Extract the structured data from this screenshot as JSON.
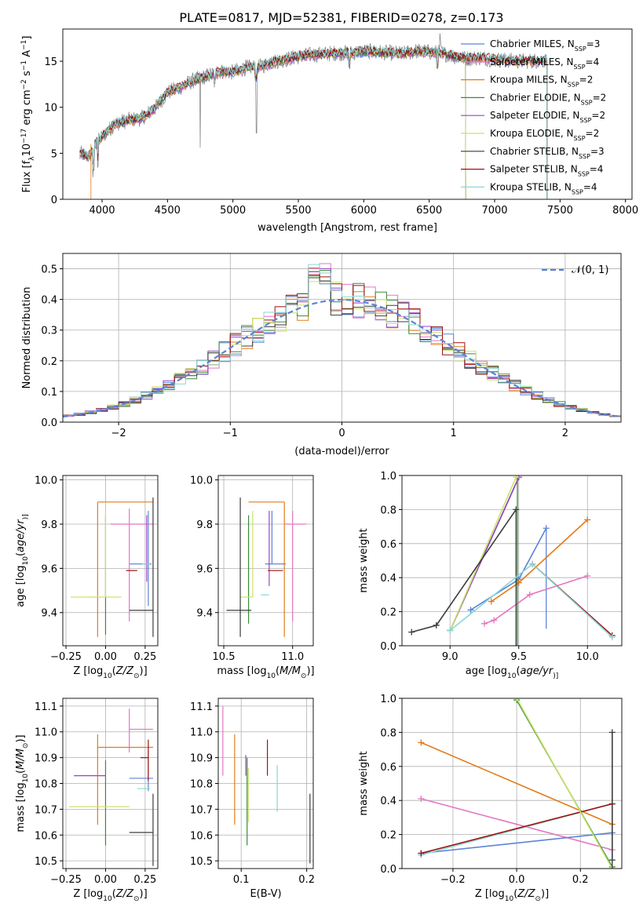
{
  "figure": {
    "title": "PLATE=0817, MJD=52381, FIBERID=0278, z=0.173"
  },
  "colors": {
    "Chabrier MILES": "#5b84d6",
    "Salpeter MILES": "#e377c2",
    "Kroupa MILES": "#e37b1a",
    "Chabrier ELODIE": "#3a8a3a",
    "Salpeter ELODIE": "#9b42c8",
    "Kroupa ELODIE": "#c8e36b",
    "Chabrier STELIB": "#3c3c3c",
    "Salpeter STELIB": "#a01010",
    "Kroupa STELIB": "#8ad6d6",
    "gauss": "#5b84d6",
    "spectrum": "#7f7f7f"
  },
  "chart_data": [
    {
      "id": "spectrum",
      "type": "line",
      "xlabel": "wavelength [Angstrom, rest frame]",
      "ylabel_html": [
        "Flux [f",
        "λ",
        "10",
        "−17",
        " erg cm",
        "−2",
        " s",
        "−1",
        " A",
        "−1",
        "]"
      ],
      "xlim": [
        3700,
        8050
      ],
      "ylim": [
        0,
        18.5
      ],
      "xticks": [
        4000,
        4500,
        5000,
        5500,
        6000,
        6500,
        7000,
        7500,
        8000
      ],
      "yticks": [
        0,
        5,
        10,
        15
      ],
      "continuum": [
        [
          3830,
          5.0
        ],
        [
          3900,
          4.6
        ],
        [
          3950,
          6.0
        ],
        [
          4000,
          6.8
        ],
        [
          4100,
          8.2
        ],
        [
          4200,
          8.6
        ],
        [
          4300,
          8.8
        ],
        [
          4400,
          9.8
        ],
        [
          4500,
          11.6
        ],
        [
          4600,
          12.2
        ],
        [
          4700,
          12.9
        ],
        [
          4800,
          13.4
        ],
        [
          4900,
          13.9
        ],
        [
          5000,
          13.8
        ],
        [
          5100,
          14.3
        ],
        [
          5200,
          14.4
        ],
        [
          5300,
          14.9
        ],
        [
          5400,
          15.2
        ],
        [
          5500,
          15.5
        ],
        [
          5600,
          15.7
        ],
        [
          5700,
          15.8
        ],
        [
          5800,
          15.9
        ],
        [
          5900,
          15.9
        ],
        [
          6000,
          16.1
        ],
        [
          6100,
          16.0
        ],
        [
          6200,
          15.9
        ],
        [
          6300,
          15.8
        ],
        [
          6400,
          16.1
        ],
        [
          6500,
          16.0
        ],
        [
          6600,
          15.9
        ],
        [
          6700,
          15.5
        ],
        [
          6780,
          15.3
        ],
        [
          6900,
          15.4
        ],
        [
          7000,
          15.2
        ],
        [
          7200,
          15.0
        ],
        [
          7400,
          15.1
        ]
      ],
      "absorption": [
        [
          3934,
          2.8
        ],
        [
          3968,
          2.6
        ],
        [
          4861,
          1.0
        ],
        [
          5175,
          1.6
        ],
        [
          5890,
          1.4
        ],
        [
          6563,
          1.8
        ]
      ],
      "emission": [
        [
          6563,
          2.4
        ],
        [
          6583,
          1.6
        ],
        [
          5007,
          0.8
        ]
      ],
      "series": [
        {
          "name": "Chabrier MILES",
          "nssp": "3",
          "xmax": 7400
        },
        {
          "name": "Salpeter MILES",
          "nssp": "4",
          "xmax": 7400
        },
        {
          "name": "Kroupa MILES",
          "nssp": "2",
          "xmax": 7400
        },
        {
          "name": "Chabrier ELODIE",
          "nssp": "2",
          "xmax": 6780
        },
        {
          "name": "Salpeter ELODIE",
          "nssp": "2",
          "xmax": 6780
        },
        {
          "name": "Kroupa ELODIE",
          "nssp": "2",
          "xmax": 6780
        },
        {
          "name": "Chabrier STELIB",
          "nssp": "3",
          "xmax": 7400
        },
        {
          "name": "Salpeter STELIB",
          "nssp": "4",
          "xmax": 7400
        },
        {
          "name": "Kroupa STELIB",
          "nssp": "4",
          "xmax": 7400
        }
      ],
      "legend": "top-right"
    },
    {
      "id": "residuals",
      "type": "step",
      "xlabel": "(data-model)/error",
      "ylabel": "Normed distribution",
      "xlim": [
        -2.5,
        2.5
      ],
      "ylim": [
        0,
        0.55
      ],
      "xticks": [
        -2,
        -1,
        0,
        1,
        2
      ],
      "yticks": [
        0.0,
        0.1,
        0.2,
        0.3,
        0.4,
        0.5
      ],
      "bin_width": 0.1,
      "gaussian_label": "𝒩(0, 1)",
      "legend": "top-right"
    },
    {
      "id": "age_vs_Z",
      "type": "errorbar",
      "xlabel_html": [
        "Z [log",
        "10",
        "(",
        "Z/Z",
        "⊙",
        ")]"
      ],
      "ylabel_html": [
        "age  [log",
        "10",
        "(",
        "age/yr",
        ")]"
      ],
      "xlim": [
        -0.27,
        0.33
      ],
      "ylim": [
        9.25,
        10.02
      ],
      "xticks": [
        -0.25,
        0.0,
        0.25
      ],
      "yticks": [
        9.4,
        9.6,
        9.8,
        10.0
      ],
      "points": [
        {
          "series": "Chabrier MILES",
          "x": 0.27,
          "xerr": [
            0.12,
            0.02
          ],
          "y": 9.62,
          "yerr": [
            0.19,
            0.24
          ]
        },
        {
          "series": "Salpeter MILES",
          "x": 0.15,
          "xerr": [
            0.12,
            0.15
          ],
          "y": 9.8,
          "yerr": [
            0.44,
            0.07
          ]
        },
        {
          "series": "Kroupa MILES",
          "x": -0.05,
          "xerr": [
            0.0,
            0.35
          ],
          "y": 9.9,
          "yerr": [
            0.61,
            0.0
          ]
        },
        {
          "series": "Chabrier ELODIE",
          "x": 0.0,
          "xerr": [
            0.0,
            0.0
          ],
          "y": 9.47,
          "yerr": [
            0.17,
            0.37
          ]
        },
        {
          "series": "Salpeter ELODIE",
          "x": 0.26,
          "xerr": [
            0.0,
            0.0
          ],
          "y": 9.8,
          "yerr": [
            0.26,
            0.04
          ]
        },
        {
          "series": "Kroupa ELODIE",
          "x": 0.0,
          "xerr": [
            0.22,
            0.1
          ],
          "y": 9.47,
          "yerr": [
            0.0,
            0.38
          ]
        },
        {
          "series": "Chabrier STELIB",
          "x": 0.3,
          "xerr": [
            0.15,
            0.0
          ],
          "y": 9.41,
          "yerr": [
            0.12,
            0.51
          ]
        },
        {
          "series": "Salpeter STELIB",
          "x": 0.2,
          "xerr": [
            0.07,
            0.0
          ],
          "y": 9.59,
          "yerr": [
            0.0,
            0.0
          ]
        },
        {
          "series": "Kroupa STELIB",
          "x": 0.28,
          "xerr": [
            0.05,
            0.0
          ],
          "y": 9.62,
          "yerr": [
            0.0,
            0.0
          ]
        }
      ]
    },
    {
      "id": "age_vs_mass",
      "type": "errorbar",
      "xlabel_html": [
        "mass [log",
        "10",
        "(",
        "M/M",
        "⊙",
        ")]"
      ],
      "xlim": [
        10.46,
        11.15
      ],
      "ylim": [
        9.25,
        10.02
      ],
      "xticks": [
        10.5,
        11.0
      ],
      "yticks": [
        9.4,
        9.6,
        9.8,
        10.0
      ],
      "points": [
        {
          "series": "Chabrier MILES",
          "x": 10.85,
          "xerr": [
            0.05,
            0.1
          ],
          "y": 9.62,
          "yerr": [
            0.0,
            0.24
          ]
        },
        {
          "series": "Salpeter MILES",
          "x": 11.0,
          "xerr": [
            0.06,
            0.1
          ],
          "y": 9.8,
          "yerr": [
            0.44,
            0.06
          ]
        },
        {
          "series": "Kroupa MILES",
          "x": 10.94,
          "xerr": [
            0.26,
            0.0
          ],
          "y": 9.9,
          "yerr": [
            0.61,
            0.0
          ]
        },
        {
          "series": "Chabrier ELODIE",
          "x": 10.68,
          "xerr": [
            0.0,
            0.0
          ],
          "y": 9.47,
          "yerr": [
            0.12,
            0.37
          ]
        },
        {
          "series": "Salpeter ELODIE",
          "x": 10.83,
          "xerr": [
            0.0,
            0.0
          ],
          "y": 9.78,
          "yerr": [
            0.26,
            0.08
          ]
        },
        {
          "series": "Kroupa ELODIE",
          "x": 10.71,
          "xerr": [
            0.09,
            0.0
          ],
          "y": 9.47,
          "yerr": [
            0.0,
            0.39
          ]
        },
        {
          "series": "Chabrier STELIB",
          "x": 10.62,
          "xerr": [
            0.1,
            0.08
          ],
          "y": 9.41,
          "yerr": [
            0.12,
            0.51
          ]
        },
        {
          "series": "Salpeter STELIB",
          "x": 10.87,
          "xerr": [
            0.05,
            0.06
          ],
          "y": 9.59,
          "yerr": [
            0.0,
            0.0
          ]
        },
        {
          "series": "Kroupa STELIB",
          "x": 10.77,
          "xerr": [
            0.0,
            0.06
          ],
          "y": 9.48,
          "yerr": [
            0.0,
            0.0
          ]
        }
      ]
    },
    {
      "id": "massweight_vs_age",
      "type": "line",
      "xlabel_html": [
        "age  [log",
        "10",
        "(",
        "age/yr",
        ")]"
      ],
      "ylabel": "mass weight",
      "xlim": [
        8.65,
        10.25
      ],
      "ylim": [
        0,
        1.0
      ],
      "xticks": [
        9.0,
        9.5,
        10.0
      ],
      "yticks": [
        0.0,
        0.2,
        0.4,
        0.6,
        0.8,
        1.0
      ],
      "series": [
        {
          "name": "Chabrier MILES",
          "x": [
            9.15,
            9.5,
            9.7
          ],
          "y": [
            0.21,
            0.39,
            0.69
          ],
          "vlines": [
            [
              9.7,
              0.1,
              0.69
            ]
          ]
        },
        {
          "name": "Salpeter MILES",
          "x": [
            9.25,
            9.32,
            9.58,
            10.0
          ],
          "y": [
            0.13,
            0.15,
            0.3,
            0.41
          ]
        },
        {
          "name": "Kroupa MILES",
          "x": [
            9.3,
            9.5,
            10.0
          ],
          "y": [
            0.26,
            0.37,
            0.74
          ]
        },
        {
          "name": "Chabrier ELODIE",
          "x": [
            9.0,
            9.5
          ],
          "y": [
            0.09,
            0.99
          ],
          "vlines": [
            [
              9.49,
              0.0,
              0.99
            ]
          ]
        },
        {
          "name": "Salpeter ELODIE",
          "x": [
            9.0,
            9.5
          ],
          "y": [
            0.09,
            0.99
          ]
        },
        {
          "name": "Kroupa ELODIE",
          "x": [
            9.0,
            9.48
          ],
          "y": [
            0.09,
            0.99
          ]
        },
        {
          "name": "Chabrier STELIB",
          "x": [
            8.72,
            8.9,
            9.48
          ],
          "y": [
            0.08,
            0.12,
            0.8
          ],
          "vlines": [
            [
              9.48,
              0.0,
              0.8
            ]
          ]
        },
        {
          "name": "Salpeter STELIB",
          "x": [
            9.6,
            10.18
          ],
          "y": [
            0.48,
            0.06
          ]
        },
        {
          "name": "Kroupa STELIB",
          "x": [
            9.0,
            9.6,
            10.18
          ],
          "y": [
            0.09,
            0.48,
            0.05
          ]
        }
      ]
    },
    {
      "id": "mass_vs_Z",
      "type": "errorbar",
      "xlabel_html": [
        "Z [log",
        "10",
        "(",
        "Z/Z",
        "⊙",
        ")]"
      ],
      "ylabel_html": [
        "mass [log",
        "10",
        "(",
        "M/M",
        "⊙",
        ")]"
      ],
      "xlim": [
        -0.27,
        0.33
      ],
      "ylim": [
        10.47,
        11.13
      ],
      "xticks": [
        -0.25,
        0.0,
        0.25
      ],
      "yticks": [
        10.5,
        10.6,
        10.7,
        10.8,
        10.9,
        11.0,
        11.1
      ],
      "points": [
        {
          "series": "Chabrier MILES",
          "x": 0.27,
          "xerr": [
            0.12,
            0.03
          ],
          "y": 10.82,
          "yerr": [
            0.05,
            0.11
          ]
        },
        {
          "series": "Salpeter MILES",
          "x": 0.15,
          "xerr": [
            0.0,
            0.15
          ],
          "y": 11.01,
          "yerr": [
            0.09,
            0.08
          ]
        },
        {
          "series": "Kroupa MILES",
          "x": -0.05,
          "xerr": [
            0.0,
            0.35
          ],
          "y": 10.94,
          "yerr": [
            0.3,
            0.05
          ]
        },
        {
          "series": "Chabrier ELODIE",
          "x": 0.0,
          "xerr": [
            0.0,
            0.0
          ],
          "y": 10.75,
          "yerr": [
            0.19,
            0.14
          ]
        },
        {
          "series": "Salpeter ELODIE",
          "x": 0.0,
          "xerr": [
            0.2,
            0.0
          ],
          "y": 10.83,
          "yerr": [
            0.0,
            0.0
          ]
        },
        {
          "series": "Kroupa ELODIE",
          "x": 0.0,
          "xerr": [
            0.23,
            0.15
          ],
          "y": 10.71,
          "yerr": [
            0.0,
            0.0
          ]
        },
        {
          "series": "Chabrier STELIB",
          "x": 0.3,
          "xerr": [
            0.15,
            0.0
          ],
          "y": 10.61,
          "yerr": [
            0.13,
            0.15
          ]
        },
        {
          "series": "Salpeter STELIB",
          "x": 0.27,
          "xerr": [
            0.05,
            0.0
          ],
          "y": 10.9,
          "yerr": [
            0.09,
            0.07
          ]
        },
        {
          "series": "Kroupa STELIB",
          "x": 0.28,
          "xerr": [
            0.08,
            0.0
          ],
          "y": 10.78,
          "yerr": [
            0.0,
            0.0
          ]
        }
      ]
    },
    {
      "id": "mass_vs_ebv",
      "type": "errorbar",
      "xlabel": "E(B-V)",
      "xlim": [
        0.065,
        0.21
      ],
      "ylim": [
        10.47,
        11.13
      ],
      "xticks": [
        0.1,
        0.2
      ],
      "yticks": [
        10.5,
        10.6,
        10.7,
        10.8,
        10.9,
        11.0,
        11.1
      ],
      "points": [
        {
          "series": "Salpeter MILES",
          "x": 0.072,
          "y": 11.0,
          "yerr": [
            0.17,
            0.1
          ]
        },
        {
          "series": "Kroupa MILES",
          "x": 0.09,
          "y": 10.85,
          "yerr": [
            0.21,
            0.14
          ]
        },
        {
          "series": "Chabrier ELODIE",
          "x": 0.109,
          "y": 10.8,
          "yerr": [
            0.24,
            0.1
          ]
        },
        {
          "series": "Salpeter ELODIE",
          "x": 0.107,
          "y": 10.85,
          "yerr": [
            0.02,
            0.06
          ]
        },
        {
          "series": "Kroupa ELODIE",
          "x": 0.111,
          "y": 10.75,
          "yerr": [
            0.1,
            0.11
          ]
        },
        {
          "series": "Salpeter STELIB",
          "x": 0.14,
          "y": 10.9,
          "yerr": [
            0.07,
            0.07
          ]
        },
        {
          "series": "Kroupa STELIB",
          "x": 0.155,
          "y": 10.78,
          "yerr": [
            0.09,
            0.09
          ]
        },
        {
          "series": "Chabrier STELIB",
          "x": 0.205,
          "y": 10.61,
          "yerr": [
            0.12,
            0.15
          ]
        }
      ]
    },
    {
      "id": "massweight_vs_Z",
      "type": "line",
      "xlabel_html": [
        "Z [log",
        "10",
        "(",
        "Z/Z",
        "⊙",
        ")]"
      ],
      "ylabel": "mass weight",
      "xlim": [
        -0.36,
        0.33
      ],
      "ylim": [
        0,
        1.0
      ],
      "xticks": [
        -0.2,
        0.0,
        0.2
      ],
      "yticks": [
        0.0,
        0.2,
        0.4,
        0.6,
        0.8,
        1.0
      ],
      "series": [
        {
          "name": "Kroupa MILES",
          "x": [
            -0.3,
            0.3
          ],
          "y": [
            0.74,
            0.26
          ]
        },
        {
          "name": "Salpeter MILES",
          "x": [
            -0.3,
            0.3
          ],
          "y": [
            0.41,
            0.11
          ]
        },
        {
          "name": "Chabrier MILES",
          "x": [
            -0.3,
            0.3
          ],
          "y": [
            0.09,
            0.21
          ],
          "vlines": [
            [
              0.3,
              0.1,
              0.69
            ]
          ]
        },
        {
          "name": "Kroupa STELIB",
          "x": [
            -0.3,
            0.3
          ],
          "y": [
            0.08,
            0.38
          ]
        },
        {
          "name": "Salpeter STELIB",
          "x": [
            -0.3,
            0.3
          ],
          "y": [
            0.09,
            0.38
          ]
        },
        {
          "name": "Chabrier ELODIE",
          "x": [
            0.0,
            0.3
          ],
          "y": [
            0.99,
            0.01
          ]
        },
        {
          "name": "Kroupa ELODIE",
          "x": [
            0.0,
            0.3
          ],
          "y": [
            1.0,
            0.0
          ]
        },
        {
          "name": "Chabrier STELIB",
          "x": [
            0.3,
            0.3
          ],
          "y": [
            0.05,
            0.8
          ],
          "vlines": [
            [
              0.3,
              0.0,
              0.8
            ]
          ]
        }
      ]
    }
  ]
}
